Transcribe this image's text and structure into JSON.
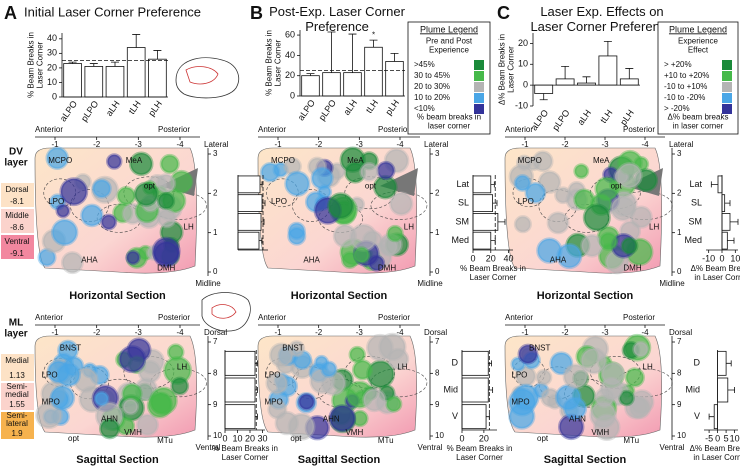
{
  "panels": [
    {
      "label": "A",
      "title": "Initial Laser Corner Preference"
    },
    {
      "label": "B",
      "title": "Post-Exp. Laser Corner Preference"
    },
    {
      "label": "C",
      "title": "Laser Exp. Effects on Laser Corner Preference"
    }
  ],
  "chart_data": [
    {
      "type": "bar",
      "orientation": "vertical",
      "categories": [
        "aLPO",
        "pLPO",
        "aLH",
        "tLH",
        "pLH"
      ],
      "values": [
        23,
        21,
        21,
        34,
        26
      ],
      "errors": [
        1,
        2,
        3,
        9,
        6
      ],
      "ylim": [
        0,
        44
      ],
      "yticks": [
        0,
        10,
        20,
        30,
        40
      ],
      "ylabel": "% Beam Breaks in Laser Corner",
      "reference_line": 25,
      "color": "#ffffff"
    },
    {
      "type": "bar",
      "orientation": "vertical",
      "categories": [
        "aLPO",
        "pLPO",
        "aLH",
        "tLH",
        "pLH"
      ],
      "values": [
        20,
        23,
        23,
        48,
        34
      ],
      "errors": [
        2,
        40,
        38,
        7,
        8
      ],
      "ylim": [
        0,
        65
      ],
      "yticks": [
        0,
        20,
        40,
        60
      ],
      "ylabel": "% Beam Breaks in Laser Corner",
      "reference_line": 25,
      "annotation": "*",
      "color": "#ffffff"
    },
    {
      "type": "bar",
      "orientation": "vertical",
      "categories": [
        "aLPO",
        "pLPO",
        "aLH",
        "tLH",
        "pLH"
      ],
      "values": [
        -4,
        3,
        1,
        14,
        3
      ],
      "errors": [
        3,
        6,
        3,
        7,
        5
      ],
      "ylim": [
        -10,
        25
      ],
      "yticks": [
        -10,
        0,
        10,
        20
      ],
      "ylabel": "Δ% Beam Breaks in Laser Corner",
      "color": "#ffffff"
    },
    {
      "type": "bar",
      "orientation": "horizontal",
      "values": [
        22,
        24,
        23,
        21
      ],
      "errors": [
        2,
        3,
        3,
        3
      ],
      "xlim": [
        0,
        30
      ],
      "reference_line": 25,
      "color": "#ffffff"
    },
    {
      "type": "bar",
      "orientation": "horizontal",
      "categories": [
        "Lat",
        "SL",
        "SM",
        "Med"
      ],
      "values": [
        20,
        22,
        28,
        20
      ],
      "errors": [
        4,
        5,
        8,
        5
      ],
      "xlim": [
        0,
        45
      ],
      "xticks": [
        0,
        20,
        40
      ],
      "xlabel": "% Beam Breaks in Laser Corner",
      "reference_line": 25,
      "color": "#ffffff"
    },
    {
      "type": "bar",
      "orientation": "horizontal",
      "categories": [
        "Lat",
        "SL",
        "SM",
        "Med"
      ],
      "values": [
        -3,
        2,
        6,
        4
      ],
      "errors": [
        5,
        4,
        6,
        5
      ],
      "xlim": [
        -12,
        12
      ],
      "xticks": [
        -10,
        0,
        10
      ],
      "xlabel": "Δ% Beam Breaks in Laser Corner",
      "color": "#ffffff"
    },
    {
      "type": "bar",
      "orientation": "horizontal",
      "values": [
        24,
        24,
        24
      ],
      "errors": [
        2,
        2,
        2
      ],
      "xlim": [
        0,
        32
      ],
      "xticks": [
        0,
        10,
        20,
        30
      ],
      "xlabel": "% Beam Breaks in Laser Corner",
      "reference_line": 25,
      "color": "#ffffff"
    },
    {
      "type": "bar",
      "orientation": "horizontal",
      "categories": [
        "D",
        "Mid",
        "V"
      ],
      "values": [
        24,
        24,
        22
      ],
      "errors": [
        3,
        4,
        3
      ],
      "xlim": [
        0,
        32
      ],
      "xticks": [
        0,
        20
      ],
      "xlabel": "% Beam Breaks in Laser Corner",
      "reference_line": 25,
      "color": "#ffffff"
    },
    {
      "type": "bar",
      "orientation": "horizontal",
      "categories": [
        "D",
        "Mid",
        "V"
      ],
      "values": [
        5,
        6,
        -2
      ],
      "errors": [
        3,
        4,
        3
      ],
      "xlim": [
        -8,
        12
      ],
      "xticks": [
        -5,
        0,
        5,
        10
      ],
      "xlabel": "Δ% Beam Breaks in Laser Corner",
      "color": "#ffffff"
    }
  ],
  "brain_maps": {
    "horizontal": {
      "title": "Horizontal Section",
      "start": "Anterior",
      "end": "Posterior",
      "corner": "Lateral",
      "ticks": [
        -1,
        -2,
        -3,
        -4
      ],
      "side_ticks": [
        3,
        2,
        1,
        0
      ],
      "side_end": "Midline",
      "labels": [
        "MCPO",
        "MeA",
        "opt",
        "LPO",
        "LH",
        "AHA",
        "DMH"
      ]
    },
    "sagittal": {
      "title": "Sagittal Section",
      "start": "Anterior",
      "end": "Posterior",
      "corner": "Dorsal",
      "ticks": [
        -1,
        -2,
        -3,
        -4
      ],
      "side_ticks": [
        7,
        8,
        9,
        10
      ],
      "side_end": "Ventral",
      "labels": [
        "BNST",
        "LH",
        "LPO",
        "MPO",
        "AHN",
        "VMH",
        "opt",
        "MTu"
      ]
    }
  },
  "dv_layer": {
    "title": "DV layer",
    "layers": [
      {
        "label": "Dorsal",
        "value": -8.1,
        "color": "#fde2c6"
      },
      {
        "label": "Middle",
        "value": -8.6,
        "color": "#fbd3cc"
      },
      {
        "label": "Ventral",
        "value": -9.1,
        "color": "#f2879f"
      }
    ]
  },
  "ml_layer": {
    "title": "ML layer",
    "layers": [
      {
        "label": "Medial",
        "value": 1.13,
        "color": "#fde2c6"
      },
      {
        "label": "Semi-medial",
        "value": 1.55,
        "color": "#fbd3cc"
      },
      {
        "label": "Semi-lateral",
        "value": 1.9,
        "color": "#f6b24e"
      }
    ]
  },
  "legends": [
    {
      "title": "Plume Legend",
      "subtitle": "Pre and Post Experience",
      "items": [
        {
          "label": ">45%",
          "color": "#1a8a3a"
        },
        {
          "label": "30 to 45%",
          "color": "#46b94a"
        },
        {
          "label": "20 to 30%",
          "color": "#b4b4b4"
        },
        {
          "label": "10 to 20%",
          "color": "#4aa6e6"
        },
        {
          "label": "<10%",
          "color": "#33339a"
        }
      ],
      "footer": "% beam breaks in laser corner"
    },
    {
      "title": "Plume Legend",
      "subtitle": "Experience Effect",
      "items": [
        {
          "label": "> +20%",
          "color": "#1a8a3a"
        },
        {
          "label": "+10 to +20%",
          "color": "#46b94a"
        },
        {
          "label": "-10 to +10%",
          "color": "#b4b4b4"
        },
        {
          "label": "-10 to -20%",
          "color": "#4aa6e6"
        },
        {
          "label": "> -20%",
          "color": "#33339a"
        }
      ],
      "footer": "Δ% beam breaks in laser corner"
    }
  ]
}
